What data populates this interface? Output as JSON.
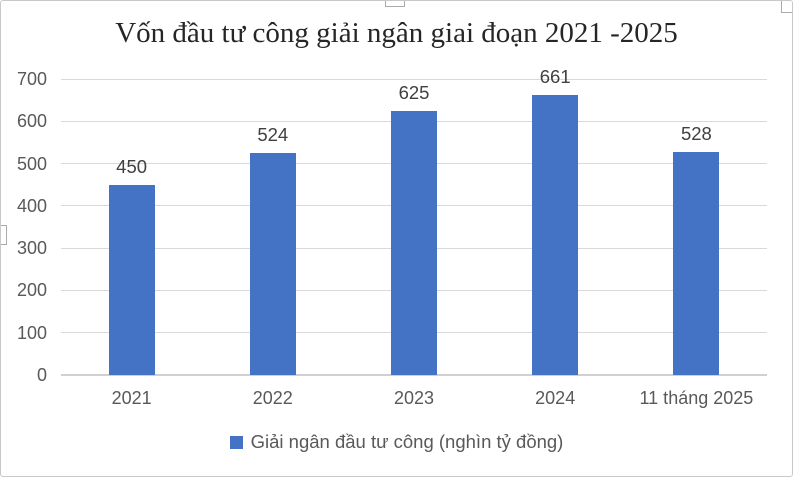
{
  "chart_data": {
    "type": "bar",
    "title": "Vốn đầu tư công giải ngân giai đoạn 2021 -2025",
    "categories": [
      "2021",
      "2022",
      "2023",
      "2024",
      "11 tháng 2025"
    ],
    "series": [
      {
        "name": "Giải ngân đầu tư công (nghìn tỷ đồng)",
        "values": [
          450,
          524,
          625,
          661,
          528
        ]
      }
    ],
    "xlabel": "",
    "ylabel": "",
    "ylim": [
      0,
      700
    ],
    "yticks": [
      0,
      100,
      200,
      300,
      400,
      500,
      600,
      700
    ],
    "grid": true,
    "data_labels": true,
    "legend_position": "bottom"
  },
  "colors": {
    "bar": "#4472C4",
    "gridline": "#D9D9D9",
    "axis_line": "#D0D0D0",
    "tick_label": "#595959",
    "data_label": "#404040",
    "title": "#262626",
    "frame_border": "#C9C9C9"
  }
}
